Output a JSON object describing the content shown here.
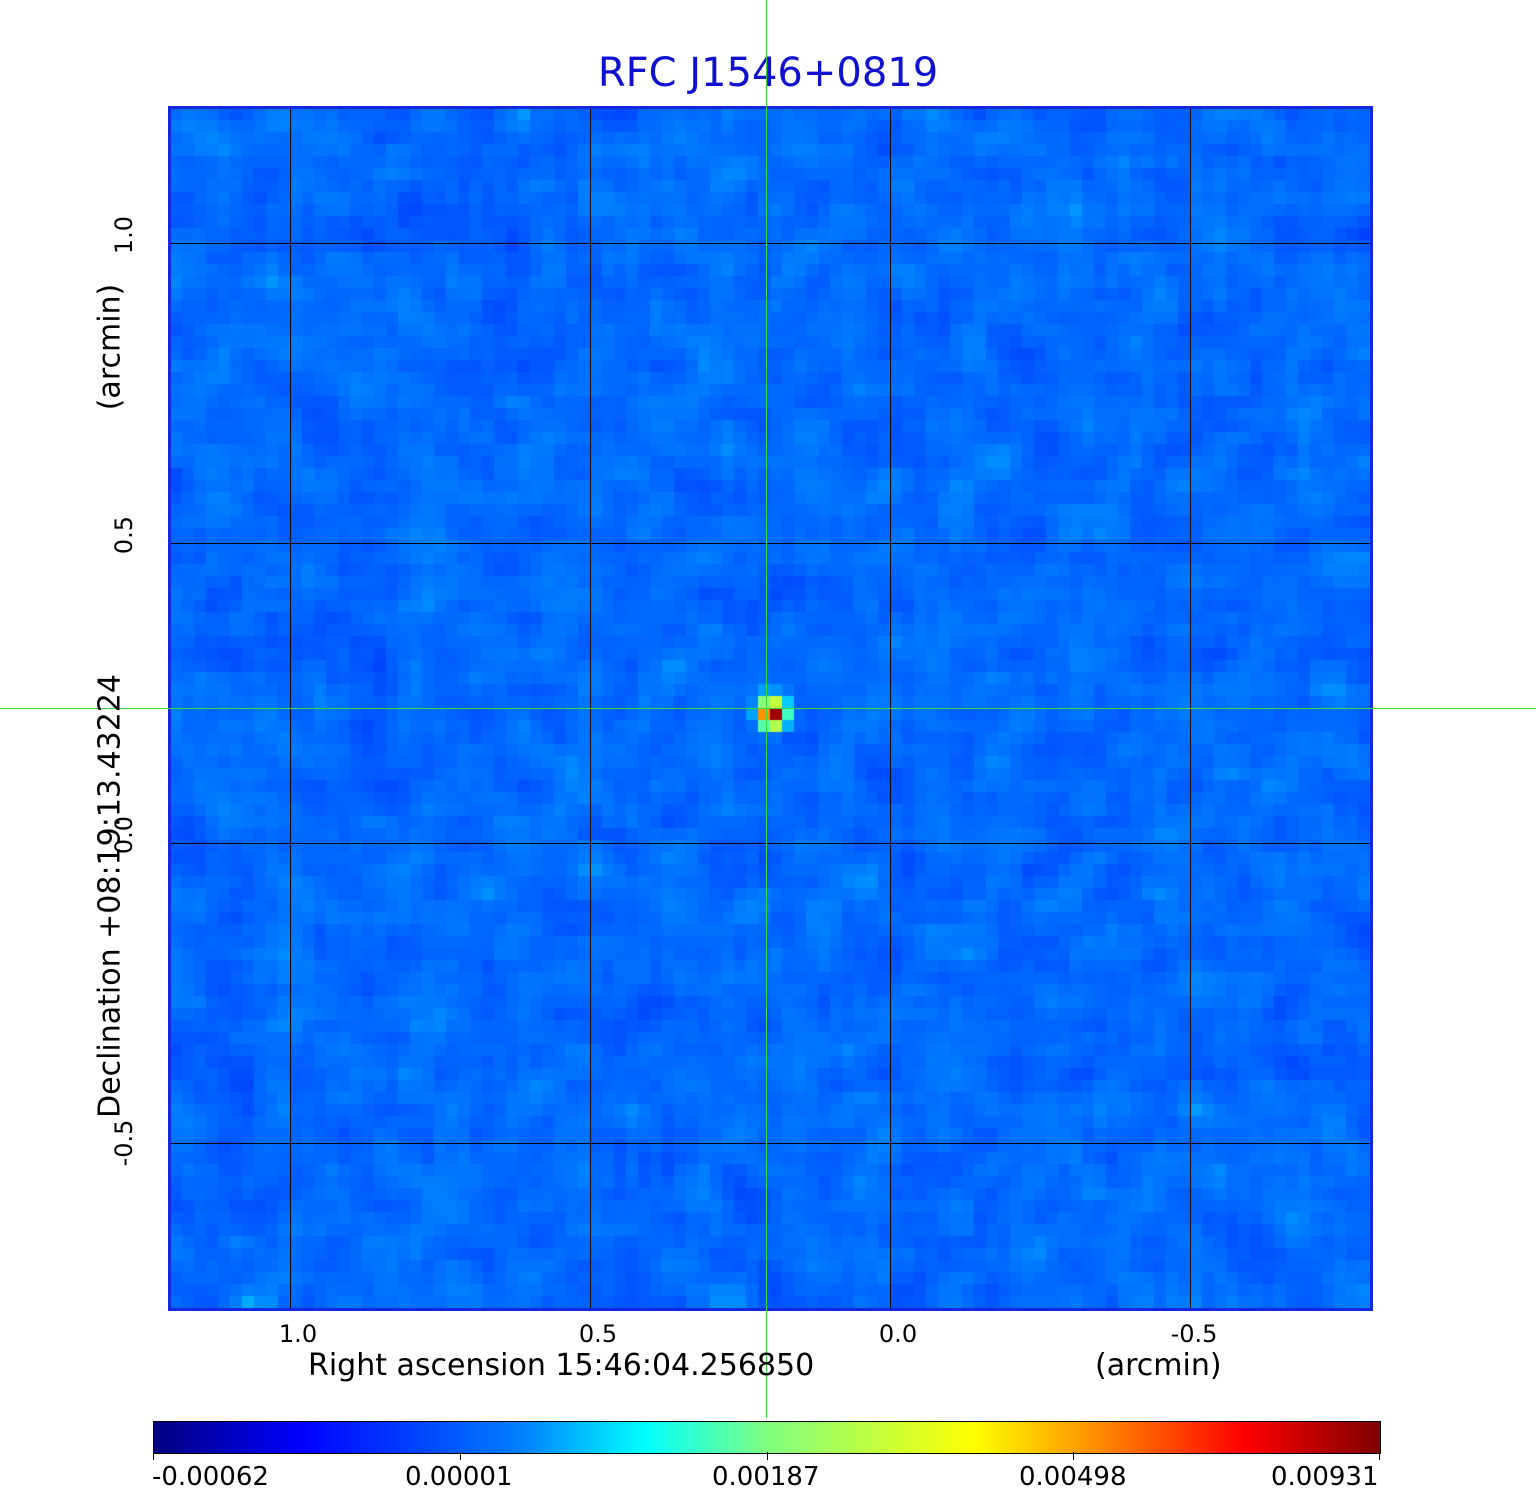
{
  "title": "RFC J1546+0819",
  "x_axis": {
    "ticks": [
      "1.0",
      "0.5",
      "0.0",
      "-0.5"
    ],
    "label_main": "Right ascension  15:46:04.256850",
    "label_unit": "(arcmin)"
  },
  "y_axis": {
    "ticks": [
      "1.0",
      "0.5",
      "0.0",
      "-0.5"
    ],
    "label_main": "Declination  +08:19:13.43224",
    "label_unit": "(arcmin)"
  },
  "colorbar": {
    "ticks": [
      "-0.00062",
      "0.00001",
      "0.00187",
      "0.00498",
      "0.00931"
    ]
  },
  "colors": {
    "title": "#1010d0",
    "frame": "#1428e0",
    "crosshair": "#3ad83a"
  }
}
